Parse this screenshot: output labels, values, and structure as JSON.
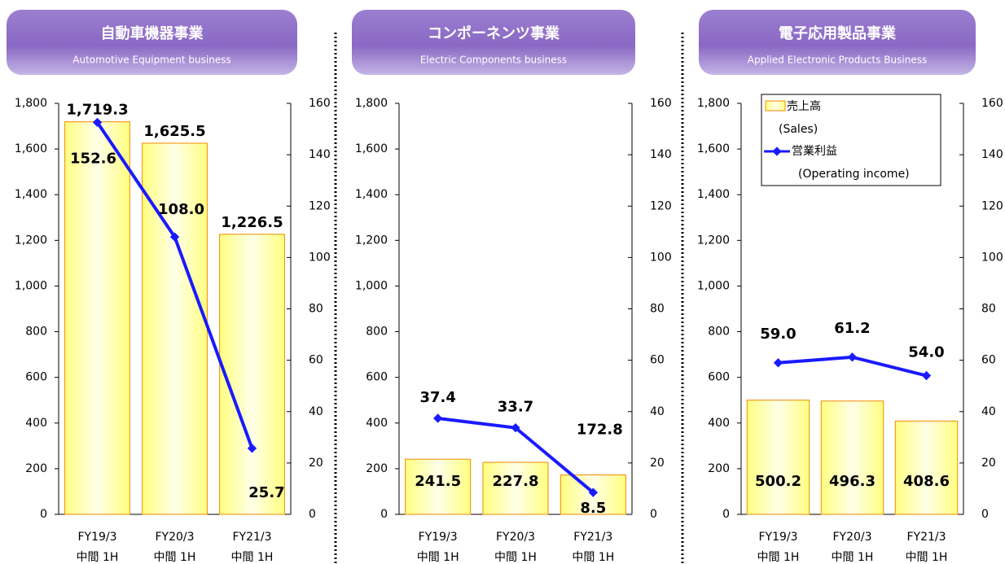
{
  "chart_data": [
    {
      "type": "bar_line",
      "title": "自動車機器事業",
      "subtitle": "Automotive Equipment business",
      "categories": [
        [
          "FY19/3",
          "中間 1H"
        ],
        [
          "FY20/3",
          "中間 1H"
        ],
        [
          "FY21/3",
          "中間 1H"
        ]
      ],
      "series": [
        {
          "type": "bar",
          "color": "#f08a00",
          "values": [
            1719.3,
            1625.5,
            1226.5
          ],
          "value_labels": [
            "1,719.3",
            "1,625.5",
            "1,226.5"
          ]
        },
        {
          "type": "line",
          "axis": "y2",
          "color": "#1a1aff",
          "values": [
            152.6,
            108.0,
            25.7
          ],
          "value_labels": [
            "152.6",
            "108.0",
            "25.7"
          ]
        }
      ],
      "ylim": [
        0,
        1800
      ],
      "yticks": [
        0,
        200,
        400,
        600,
        800,
        {
          "value": 1000,
          "label": "1,000"
        },
        {
          "value": 1200,
          "label": "1,200"
        },
        {
          "value": 1400,
          "label": "1,400"
        },
        {
          "value": 1600,
          "label": "1,600"
        },
        {
          "value": 1800,
          "label": "1,800"
        }
      ],
      "y2lim": [
        0,
        160
      ],
      "y2ticks": [
        0,
        20,
        40,
        60,
        80,
        100,
        120,
        140,
        160
      ]
    },
    {
      "type": "bar_line",
      "title": "コンポーネンツ事業",
      "subtitle": "Electric Components business",
      "categories": [
        [
          "FY19/3",
          "中間 1H"
        ],
        [
          "FY20/3",
          "中間 1H"
        ],
        [
          "FY21/3",
          "中間 1H"
        ]
      ],
      "series": [
        {
          "type": "bar",
          "color": "#f08a00",
          "values": [
            241.5,
            227.8,
            172.8
          ],
          "value_labels": [
            "241.5",
            "227.8",
            "172.8"
          ]
        },
        {
          "type": "line",
          "axis": "y2",
          "color": "#1a1aff",
          "values": [
            37.4,
            33.7,
            8.5
          ],
          "value_labels": [
            "37.4",
            "33.7",
            "8.5"
          ]
        }
      ],
      "ylim": [
        0,
        1800
      ],
      "yticks": [
        0,
        200,
        400,
        600,
        800,
        {
          "value": 1000,
          "label": "1,000"
        },
        {
          "value": 1200,
          "label": "1,200"
        },
        {
          "value": 1400,
          "label": "1,400"
        },
        {
          "value": 1600,
          "label": "1,600"
        },
        {
          "value": 1800,
          "label": "1,800"
        }
      ],
      "y2lim": [
        0,
        160
      ],
      "y2ticks": [
        0,
        20,
        40,
        60,
        80,
        100,
        120,
        140,
        160
      ]
    },
    {
      "type": "bar_line",
      "title": "電子応用製品事業",
      "subtitle": "Applied Electronic Products Business",
      "categories": [
        [
          "FY19/3",
          "中間 1H"
        ],
        [
          "FY20/3",
          "中間 1H"
        ],
        [
          "FY21/3",
          "中間 1H"
        ]
      ],
      "series": [
        {
          "type": "bar",
          "name": "売上高",
          "name_en": "(Sales)",
          "color": "#f08a00",
          "values": [
            500.2,
            496.3,
            408.6
          ],
          "value_labels": [
            "500.2",
            "496.3",
            "408.6"
          ]
        },
        {
          "type": "line",
          "name": "営業利益",
          "name_en": "(Operating income)",
          "axis": "y2",
          "color": "#1a1aff",
          "values": [
            59.0,
            61.2,
            54.0
          ],
          "value_labels": [
            "59.0",
            "61.2",
            "54.0"
          ]
        }
      ],
      "ylim": [
        0,
        1800
      ],
      "yticks": [
        0,
        200,
        400,
        600,
        800,
        {
          "value": 1000,
          "label": "1,000"
        },
        {
          "value": 1200,
          "label": "1,200"
        },
        {
          "value": 1400,
          "label": "1,400"
        },
        {
          "value": 1600,
          "label": "1,600"
        },
        {
          "value": 1800,
          "label": "1,800"
        }
      ],
      "y2lim": [
        0,
        160
      ],
      "y2ticks": [
        0,
        20,
        40,
        60,
        80,
        100,
        120,
        140,
        160
      ],
      "legend": "top-left"
    }
  ]
}
